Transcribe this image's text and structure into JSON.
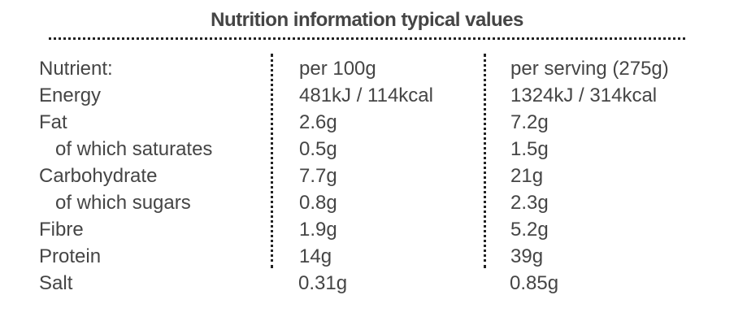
{
  "title": "Nutrition information typical values",
  "header": {
    "nutrient": "Nutrient:",
    "per100": "per 100g",
    "perServing": "per serving (275g)"
  },
  "rows": [
    {
      "nutrient": "Energy",
      "per100": "481kJ / 114kcal",
      "perServing": "1324kJ / 314kcal",
      "indent": false
    },
    {
      "nutrient": "Fat",
      "per100": "2.6g",
      "perServing": "7.2g",
      "indent": false
    },
    {
      "nutrient": "of which saturates",
      "per100": "0.5g",
      "perServing": "1.5g",
      "indent": true
    },
    {
      "nutrient": "Carbohydrate",
      "per100": "7.7g",
      "perServing": "21g",
      "indent": false
    },
    {
      "nutrient": "of which sugars",
      "per100": "0.8g",
      "perServing": "2.3g",
      "indent": true
    },
    {
      "nutrient": "Fibre",
      "per100": "1.9g",
      "perServing": "5.2g",
      "indent": false
    },
    {
      "nutrient": "Protein",
      "per100": "14g",
      "perServing": "39g",
      "indent": false
    },
    {
      "nutrient": "Salt",
      "per100": "0.31g",
      "perServing": "0.85g",
      "indent": false
    }
  ]
}
